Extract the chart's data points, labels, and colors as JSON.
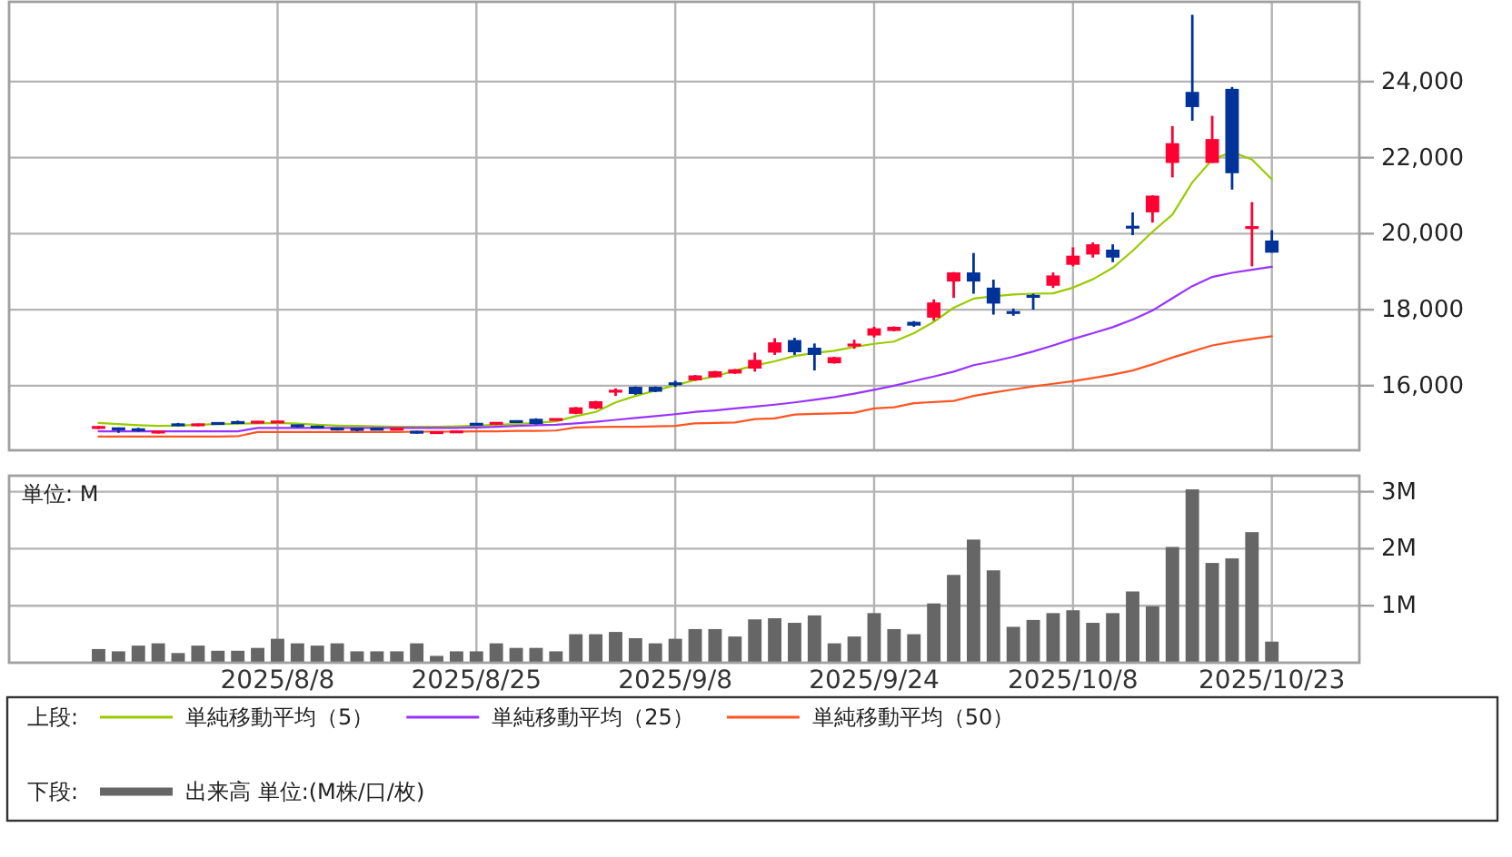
{
  "chart_data": [
    {
      "type": "candlestick",
      "categories": [
        null,
        null,
        null,
        null,
        null,
        null,
        null,
        null,
        null,
        "2025/8/8",
        null,
        null,
        null,
        null,
        null,
        null,
        null,
        null,
        null,
        "2025/8/25",
        null,
        null,
        null,
        null,
        null,
        null,
        null,
        null,
        null,
        "2025/9/8",
        null,
        null,
        null,
        null,
        null,
        null,
        null,
        null,
        null,
        "2025/9/24",
        null,
        null,
        null,
        null,
        null,
        null,
        null,
        null,
        null,
        "2025/10/8",
        null,
        null,
        null,
        null,
        null,
        null,
        null,
        null,
        null,
        "2025/10/23"
      ],
      "ohlc": [
        [
          14880,
          14940,
          14860,
          14920
        ],
        [
          14880,
          14900,
          14760,
          14850
        ],
        [
          14850,
          14890,
          14790,
          14830
        ],
        [
          14750,
          14820,
          14740,
          14810
        ],
        [
          14980,
          15020,
          14930,
          14960
        ],
        [
          14960,
          15000,
          14930,
          14980
        ],
        [
          15010,
          15020,
          14990,
          15000
        ],
        [
          15040,
          15080,
          14990,
          15020
        ],
        [
          15030,
          15070,
          15010,
          15050
        ],
        [
          15030,
          15070,
          15020,
          15060
        ],
        [
          14960,
          14970,
          14900,
          14930
        ],
        [
          14920,
          14950,
          14880,
          14900
        ],
        [
          14880,
          14900,
          14820,
          14840
        ],
        [
          14860,
          14880,
          14800,
          14840
        ],
        [
          14860,
          14870,
          14830,
          14850
        ],
        [
          14850,
          14870,
          14830,
          14860
        ],
        [
          14800,
          14810,
          14740,
          14750
        ],
        [
          14760,
          14790,
          14740,
          14770
        ],
        [
          14780,
          14810,
          14760,
          14790
        ],
        [
          15000,
          15010,
          14960,
          14970
        ],
        [
          14990,
          15040,
          14980,
          15030
        ],
        [
          15060,
          15090,
          15030,
          15050
        ],
        [
          15130,
          15140,
          14980,
          14990
        ],
        [
          15100,
          15130,
          15090,
          15120
        ],
        [
          15260,
          15440,
          15250,
          15430
        ],
        [
          15400,
          15600,
          15380,
          15590
        ],
        [
          15840,
          15930,
          15730,
          15870
        ],
        [
          15970,
          15980,
          15760,
          15780
        ],
        [
          15970,
          15980,
          15830,
          15840
        ],
        [
          16060,
          16130,
          15970,
          16040
        ],
        [
          16140,
          16280,
          16130,
          16270
        ],
        [
          16220,
          16390,
          16210,
          16380
        ],
        [
          16320,
          16440,
          16310,
          16430
        ],
        [
          16450,
          16870,
          16370,
          16680
        ],
        [
          16870,
          17250,
          16810,
          17140
        ],
        [
          17200,
          17260,
          16810,
          16880
        ],
        [
          17000,
          17110,
          16400,
          16810
        ],
        [
          16590,
          16760,
          16580,
          16750
        ],
        [
          17050,
          17210,
          16970,
          17090
        ],
        [
          17320,
          17550,
          17270,
          17510
        ],
        [
          17440,
          17560,
          17430,
          17550
        ],
        [
          17680,
          17700,
          17550,
          17580
        ],
        [
          17790,
          18270,
          17710,
          18190
        ],
        [
          18740,
          18990,
          18310,
          18980
        ],
        [
          18980,
          19490,
          18420,
          18740
        ],
        [
          18580,
          18790,
          17870,
          18160
        ],
        [
          17940,
          18030,
          17840,
          17910
        ],
        [
          18360,
          18420,
          18000,
          18340
        ],
        [
          18630,
          18980,
          18570,
          18900
        ],
        [
          19180,
          19640,
          19140,
          19420
        ],
        [
          19450,
          19770,
          19370,
          19720
        ],
        [
          19580,
          19720,
          19250,
          19370
        ],
        [
          20180,
          20560,
          19960,
          20160
        ],
        [
          20560,
          21010,
          20290,
          21000
        ],
        [
          21860,
          22830,
          21480,
          22380
        ],
        [
          23730,
          25760,
          22970,
          23330
        ],
        [
          21860,
          23100,
          21860,
          22490
        ],
        [
          23810,
          23860,
          21160,
          21590
        ],
        [
          20150,
          20830,
          19140,
          20170
        ],
        [
          19820,
          20090,
          19500,
          19500
        ]
      ],
      "colors": [
        "#ff0033",
        "#003399",
        "#003399",
        "#ff0033",
        "#003399",
        "#ff0033",
        "#003399",
        "#003399",
        "#ff0033",
        "#ff0033",
        "#003399",
        "#003399",
        "#003399",
        "#003399",
        "#003399",
        "#ff0033",
        "#003399",
        "#ff0033",
        "#ff0033",
        "#003399",
        "#ff0033",
        "#003399",
        "#003399",
        "#ff0033",
        "#ff0033",
        "#ff0033",
        "#ff0033",
        "#003399",
        "#003399",
        "#003399",
        "#ff0033",
        "#ff0033",
        "#ff0033",
        "#ff0033",
        "#ff0033",
        "#003399",
        "#003399",
        "#ff0033",
        "#ff0033",
        "#ff0033",
        "#ff0033",
        "#003399",
        "#ff0033",
        "#ff0033",
        "#003399",
        "#003399",
        "#003399",
        "#003399",
        "#ff0033",
        "#ff0033",
        "#ff0033",
        "#003399",
        "#003399",
        "#ff0033",
        "#ff0033",
        "#003399",
        "#ff0033",
        "#003399",
        "#ff0033",
        "#003399"
      ],
      "series": [
        {
          "name": "単純移動平均（5）",
          "type": "line",
          "color": "#99cc00",
          "values": [
            15020,
            14990,
            14960,
            14940,
            14950,
            14970,
            14990,
            15000,
            15010,
            15020,
            15000,
            14970,
            14950,
            14940,
            14930,
            14920,
            14920,
            14920,
            14930,
            14950,
            14970,
            14990,
            15020,
            15060,
            15200,
            15310,
            15560,
            15730,
            15870,
            16010,
            16150,
            16240,
            16400,
            16530,
            16640,
            16780,
            16860,
            16920,
            17020,
            17100,
            17160,
            17380,
            17680,
            18050,
            18290,
            18350,
            18400,
            18420,
            18430,
            18580,
            18800,
            19100,
            19550,
            20050,
            20500,
            21350,
            21950,
            22150,
            21950,
            21430
          ]
        },
        {
          "name": "単純移動平均（25）",
          "type": "line",
          "color": "#9933ff",
          "values": [
            14800,
            14800,
            14800,
            14800,
            14800,
            14800,
            14800,
            14800,
            14890,
            14890,
            14890,
            14890,
            14890,
            14890,
            14890,
            14890,
            14890,
            14890,
            14890,
            14900,
            14920,
            14940,
            14960,
            14970,
            15010,
            15050,
            15100,
            15150,
            15200,
            15250,
            15310,
            15350,
            15400,
            15450,
            15500,
            15560,
            15630,
            15700,
            15790,
            15890,
            16000,
            16120,
            16240,
            16370,
            16540,
            16640,
            16760,
            16900,
            17060,
            17230,
            17380,
            17540,
            17740,
            17980,
            18300,
            18620,
            18860,
            18970,
            19050,
            19130
          ]
        },
        {
          "name": "単純移動平均（50）",
          "type": "line",
          "color": "#ff5522",
          "values": [
            14660,
            14660,
            14660,
            14660,
            14660,
            14660,
            14660,
            14670,
            14780,
            14780,
            14780,
            14780,
            14780,
            14780,
            14780,
            14780,
            14790,
            14790,
            14790,
            14800,
            14800,
            14810,
            14810,
            14820,
            14900,
            14910,
            14920,
            14920,
            14930,
            14940,
            15010,
            15020,
            15030,
            15120,
            15140,
            15240,
            15260,
            15270,
            15290,
            15400,
            15430,
            15540,
            15570,
            15600,
            15730,
            15820,
            15900,
            15980,
            16050,
            16120,
            16200,
            16290,
            16400,
            16560,
            16740,
            16900,
            17060,
            17150,
            17230,
            17300
          ]
        }
      ],
      "ylim": [
        14300,
        26100
      ],
      "yticks": [
        {
          "value": 16000,
          "label": "16,000"
        },
        {
          "value": 18000,
          "label": "18,000"
        },
        {
          "value": 20000,
          "label": "20,000"
        },
        {
          "value": 22000,
          "label": "22,000"
        },
        {
          "value": 24000,
          "label": "24,000"
        }
      ],
      "grid": true,
      "legend": "bottom",
      "legend_title": "上段:",
      "tick_labels": "y"
    },
    {
      "type": "bar",
      "categories": [
        null,
        null,
        null,
        null,
        null,
        null,
        null,
        null,
        null,
        "2025/8/8",
        null,
        null,
        null,
        null,
        null,
        null,
        null,
        null,
        null,
        "2025/8/25",
        null,
        null,
        null,
        null,
        null,
        null,
        null,
        null,
        null,
        "2025/9/8",
        null,
        null,
        null,
        null,
        null,
        null,
        null,
        null,
        null,
        "2025/9/24",
        null,
        null,
        null,
        null,
        null,
        null,
        null,
        null,
        null,
        "2025/10/8",
        null,
        null,
        null,
        null,
        null,
        null,
        null,
        null,
        null,
        "2025/10/23"
      ],
      "series": [
        {
          "name": "出来高 単位:(M株/口/枚)",
          "color": "#666666",
          "values": [
            0.24,
            0.2,
            0.3,
            0.34,
            0.17,
            0.3,
            0.21,
            0.21,
            0.26,
            0.42,
            0.34,
            0.3,
            0.34,
            0.2,
            0.2,
            0.2,
            0.34,
            0.12,
            0.2,
            0.2,
            0.34,
            0.26,
            0.26,
            0.2,
            0.5,
            0.5,
            0.54,
            0.43,
            0.34,
            0.42,
            0.59,
            0.59,
            0.46,
            0.76,
            0.78,
            0.7,
            0.83,
            0.34,
            0.46,
            0.87,
            0.59,
            0.5,
            1.04,
            1.54,
            2.16,
            1.62,
            0.63,
            0.75,
            0.87,
            0.92,
            0.7,
            0.87,
            1.25,
            0.99,
            2.03,
            3.04,
            1.75,
            1.83,
            2.29,
            0.37
          ]
        }
      ],
      "ylim": [
        0,
        3.28
      ],
      "yticks": [
        {
          "value": 1,
          "label": "1M"
        },
        {
          "value": 2,
          "label": "2M"
        },
        {
          "value": 3,
          "label": "3M"
        }
      ],
      "ylabel": "単位: M",
      "grid": true,
      "legend": "bottom",
      "legend_title": "下段:"
    }
  ]
}
